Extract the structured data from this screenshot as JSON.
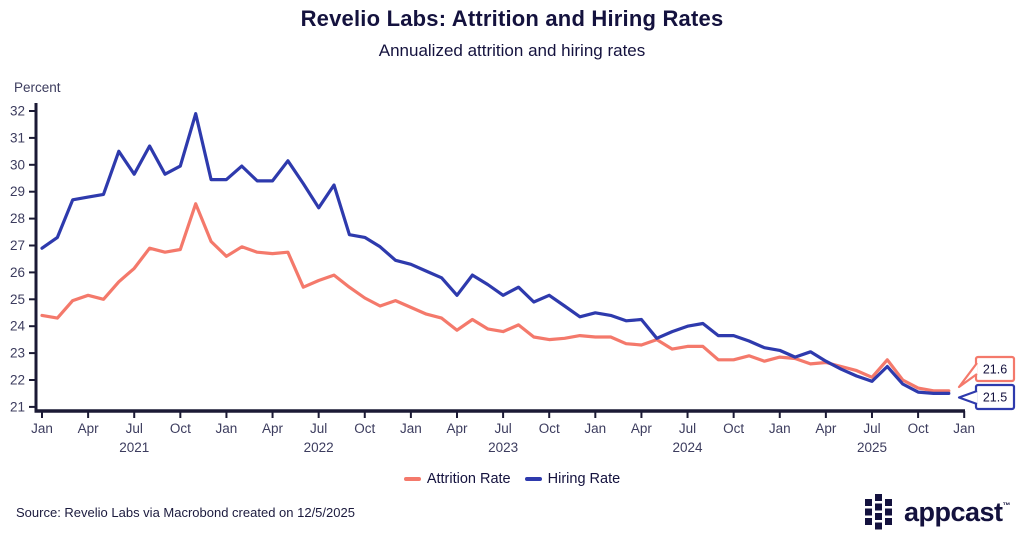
{
  "header": {
    "title": "Revelio Labs: Attrition and Hiring Rates",
    "subtitle": "Annualized attrition and hiring rates"
  },
  "axis_unit_label": "Percent",
  "chart_data": {
    "type": "line",
    "title": "Revelio Labs: Attrition and Hiring Rates",
    "subtitle": "Annualized attrition and hiring rates",
    "ylabel": "Percent",
    "ylim": [
      21,
      32
    ],
    "y_ticks": [
      21,
      22,
      23,
      24,
      25,
      26,
      27,
      28,
      29,
      30,
      31,
      32
    ],
    "x_start": "2021-01",
    "x_end": "2025-12",
    "frequency": "monthly",
    "x_tick_labels": [
      "Jan",
      "Apr",
      "Jul",
      "Oct",
      "Jan",
      "Apr",
      "Jul",
      "Oct",
      "Jan",
      "Apr",
      "Jul",
      "Oct",
      "Jan",
      "Apr",
      "Jul",
      "Oct",
      "Jan",
      "Apr",
      "Jul",
      "Oct",
      "Jan"
    ],
    "year_labels": [
      {
        "text": "2021",
        "tick_index": 2
      },
      {
        "text": "2022",
        "tick_index": 6
      },
      {
        "text": "2023",
        "tick_index": 10
      },
      {
        "text": "2024",
        "tick_index": 14
      },
      {
        "text": "2025",
        "tick_index": 18
      }
    ],
    "grid": false,
    "legend_position": "bottom-center",
    "series": [
      {
        "name": "Attrition Rate",
        "color": "#f4796b",
        "values": [
          24.4,
          24.3,
          24.95,
          25.15,
          25.0,
          25.65,
          26.15,
          26.9,
          26.75,
          26.85,
          28.55,
          27.15,
          26.6,
          26.95,
          26.75,
          26.7,
          26.75,
          25.45,
          25.7,
          25.9,
          25.45,
          25.05,
          24.75,
          24.95,
          24.7,
          24.45,
          24.3,
          23.85,
          24.25,
          23.9,
          23.8,
          24.05,
          23.6,
          23.5,
          23.55,
          23.65,
          23.6,
          23.6,
          23.35,
          23.3,
          23.5,
          23.15,
          23.25,
          23.25,
          22.75,
          22.75,
          22.9,
          22.7,
          22.85,
          22.8,
          22.6,
          22.65,
          22.5,
          22.35,
          22.1,
          22.75,
          22.0,
          21.7,
          21.6,
          21.6
        ]
      },
      {
        "name": "Hiring Rate",
        "color": "#2e3aad",
        "values": [
          26.9,
          27.3,
          28.7,
          28.8,
          28.9,
          30.5,
          29.65,
          30.7,
          29.65,
          29.95,
          31.9,
          29.45,
          29.45,
          29.95,
          29.4,
          29.4,
          30.15,
          29.3,
          28.4,
          29.25,
          27.4,
          27.3,
          26.95,
          26.45,
          26.3,
          26.05,
          25.8,
          25.15,
          25.9,
          25.55,
          25.15,
          25.45,
          24.9,
          25.15,
          24.75,
          24.35,
          24.5,
          24.4,
          24.2,
          24.25,
          23.55,
          23.8,
          24.0,
          24.1,
          23.65,
          23.65,
          23.45,
          23.2,
          23.1,
          22.85,
          23.05,
          22.7,
          22.4,
          22.15,
          21.95,
          22.5,
          21.85,
          21.55,
          21.5,
          21.5
        ]
      }
    ],
    "end_labels": [
      {
        "value": "21.6",
        "color": "#f4796b",
        "series": "Attrition Rate"
      },
      {
        "value": "21.5",
        "color": "#2e3aad",
        "series": "Hiring Rate"
      }
    ]
  },
  "legend": {
    "items": [
      {
        "label": "Attrition Rate",
        "color": "#f4796b"
      },
      {
        "label": "Hiring Rate",
        "color": "#2e3aad"
      }
    ]
  },
  "footer": {
    "source": "Source: Revelio Labs via Macrobond created on 12/5/2025"
  },
  "logo": {
    "text": "appcast",
    "tm": "™"
  }
}
